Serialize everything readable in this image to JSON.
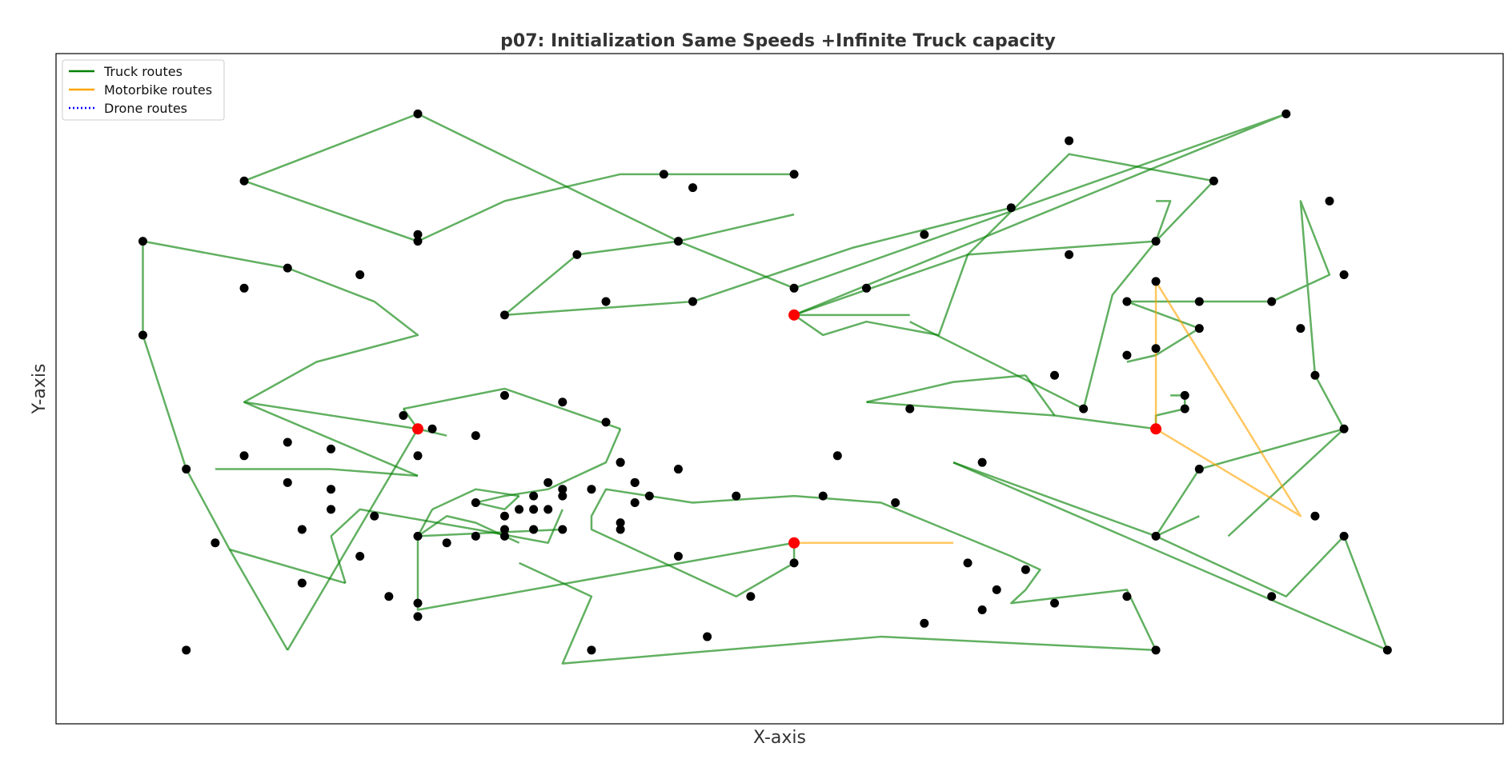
{
  "chart_data": {
    "type": "scatter",
    "title": "p07: Initialization Same Speeds +Infinite Truck capacity",
    "xlabel": "X-axis",
    "ylabel": "Y-axis",
    "xlim": [
      0,
      100
    ],
    "ylim": [
      0,
      100
    ],
    "grid": false,
    "legend_position": "top-left",
    "legend": [
      {
        "label": "Truck routes",
        "color": "#008000",
        "style": "solid"
      },
      {
        "label": "Motorbike routes",
        "color": "#ffa500",
        "style": "solid"
      },
      {
        "label": "Drone routes",
        "color": "#0000ff",
        "style": "dotted"
      }
    ],
    "colors": {
      "truck": "#008000",
      "motorbike": "#ffa500",
      "customer": "#000000",
      "depot": "#ff0000"
    },
    "depots": [
      [
        51,
        61
      ],
      [
        25,
        44
      ],
      [
        76,
        44
      ],
      [
        51,
        27
      ]
    ],
    "customers": [
      [
        25,
        91
      ],
      [
        13,
        81
      ],
      [
        25,
        72
      ],
      [
        42,
        82
      ],
      [
        51,
        82
      ],
      [
        44,
        80
      ],
      [
        43,
        72
      ],
      [
        36,
        70
      ],
      [
        31,
        61
      ],
      [
        38,
        63
      ],
      [
        44,
        63
      ],
      [
        51,
        65
      ],
      [
        56,
        65
      ],
      [
        66,
        77
      ],
      [
        60,
        73
      ],
      [
        70,
        87
      ],
      [
        85,
        91
      ],
      [
        80,
        81
      ],
      [
        76,
        72
      ],
      [
        70,
        70
      ],
      [
        74,
        63
      ],
      [
        79,
        63
      ],
      [
        84,
        63
      ],
      [
        88,
        78
      ],
      [
        89,
        67
      ],
      [
        87,
        52
      ],
      [
        89,
        44
      ],
      [
        76,
        66
      ],
      [
        79,
        59
      ],
      [
        76,
        56
      ],
      [
        74,
        55
      ],
      [
        78,
        49
      ],
      [
        78,
        47
      ],
      [
        71,
        47
      ],
      [
        69,
        52
      ],
      [
        59,
        47
      ],
      [
        64,
        39
      ],
      [
        79,
        38
      ],
      [
        76,
        28
      ],
      [
        86,
        59
      ],
      [
        87,
        31
      ],
      [
        84,
        19
      ],
      [
        89,
        28
      ],
      [
        92,
        11
      ],
      [
        76,
        11
      ],
      [
        74,
        19
      ],
      [
        69,
        18
      ],
      [
        64,
        17
      ],
      [
        65,
        20
      ],
      [
        67,
        23
      ],
      [
        63,
        24
      ],
      [
        58,
        33
      ],
      [
        54,
        40
      ],
      [
        47,
        34
      ],
      [
        53,
        34
      ],
      [
        51,
        24
      ],
      [
        48,
        19
      ],
      [
        43,
        25
      ],
      [
        39,
        30
      ],
      [
        40,
        36
      ],
      [
        39,
        39
      ],
      [
        40,
        33
      ],
      [
        39,
        29
      ],
      [
        37,
        11
      ],
      [
        45,
        13
      ],
      [
        60,
        15
      ],
      [
        34,
        32
      ],
      [
        33,
        29
      ],
      [
        31,
        31
      ],
      [
        29,
        33
      ],
      [
        31,
        28
      ],
      [
        32,
        32
      ],
      [
        25,
        16
      ],
      [
        27,
        27
      ],
      [
        35,
        29
      ],
      [
        35,
        34
      ],
      [
        37,
        35
      ],
      [
        39,
        39
      ],
      [
        38,
        45
      ],
      [
        35,
        48
      ],
      [
        31,
        49
      ],
      [
        29,
        43
      ],
      [
        26,
        44
      ],
      [
        25,
        40
      ],
      [
        24,
        46
      ],
      [
        19,
        41
      ],
      [
        16,
        36
      ],
      [
        13,
        40
      ],
      [
        19,
        35
      ],
      [
        19,
        32
      ],
      [
        17,
        29
      ],
      [
        17,
        21
      ],
      [
        22,
        31
      ],
      [
        21,
        25
      ],
      [
        9,
        11
      ],
      [
        25,
        28
      ],
      [
        23,
        19
      ],
      [
        31,
        29
      ],
      [
        25,
        18
      ],
      [
        33,
        34
      ],
      [
        35,
        35
      ],
      [
        33,
        32
      ],
      [
        29,
        28
      ],
      [
        43,
        38
      ],
      [
        41,
        34
      ],
      [
        40,
        36
      ],
      [
        34,
        36
      ],
      [
        11,
        27
      ],
      [
        6,
        58
      ],
      [
        6,
        72
      ],
      [
        9,
        38
      ],
      [
        16,
        68
      ],
      [
        25,
        73
      ],
      [
        21,
        67
      ],
      [
        16,
        42
      ],
      [
        13,
        65
      ]
    ],
    "truck_routes": [
      [
        [
          13,
          81
        ],
        [
          25,
          91
        ],
        [
          43,
          72
        ],
        [
          51,
          65
        ],
        [
          85,
          91
        ],
        [
          51,
          61
        ]
      ],
      [
        [
          25,
          72
        ],
        [
          13,
          81
        ]
      ],
      [
        [
          25,
          72
        ],
        [
          31,
          78
        ],
        [
          39,
          82
        ],
        [
          51,
          82
        ]
      ],
      [
        [
          31,
          61
        ],
        [
          36,
          70
        ],
        [
          43,
          72
        ],
        [
          51,
          76
        ]
      ],
      [
        [
          31,
          61
        ],
        [
          44,
          63
        ],
        [
          55,
          71
        ],
        [
          66,
          77
        ]
      ],
      [
        [
          51,
          61
        ],
        [
          53,
          58
        ],
        [
          56,
          60
        ],
        [
          61,
          58
        ],
        [
          63,
          70
        ],
        [
          70,
          85
        ],
        [
          80,
          81
        ],
        [
          76,
          72
        ]
      ],
      [
        [
          76,
          72
        ],
        [
          63,
          70
        ],
        [
          51,
          61
        ]
      ],
      [
        [
          6,
          58
        ],
        [
          6,
          72
        ],
        [
          16,
          68
        ],
        [
          22,
          63
        ],
        [
          25,
          58
        ],
        [
          18,
          54
        ],
        [
          13,
          48
        ],
        [
          25,
          44
        ]
      ],
      [
        [
          6,
          58
        ],
        [
          9,
          38
        ],
        [
          12,
          26
        ],
        [
          16,
          11
        ]
      ],
      [
        [
          16,
          11
        ],
        [
          25,
          44
        ]
      ],
      [
        [
          12,
          26
        ],
        [
          20,
          21
        ]
      ],
      [
        [
          19,
          28
        ],
        [
          20,
          21
        ]
      ],
      [
        [
          19,
          28
        ],
        [
          21,
          32
        ],
        [
          29,
          29
        ],
        [
          34,
          27
        ],
        [
          35,
          32
        ]
      ],
      [
        [
          11,
          38
        ],
        [
          19,
          38
        ],
        [
          25,
          37
        ]
      ],
      [
        [
          25,
          37
        ],
        [
          13,
          48
        ]
      ],
      [
        [
          25,
          44
        ],
        [
          27,
          43
        ]
      ],
      [
        [
          24,
          47
        ],
        [
          31,
          50
        ],
        [
          39,
          44
        ]
      ],
      [
        [
          24,
          47
        ],
        [
          25,
          44
        ]
      ],
      [
        [
          39,
          44
        ],
        [
          38,
          39
        ],
        [
          34,
          35
        ],
        [
          31,
          34
        ],
        [
          29,
          33
        ],
        [
          31,
          32
        ],
        [
          32,
          34
        ]
      ],
      [
        [
          32,
          34
        ],
        [
          29,
          35
        ],
        [
          26,
          32
        ]
      ],
      [
        [
          26,
          32
        ],
        [
          25,
          28
        ]
      ],
      [
        [
          25,
          28
        ],
        [
          35,
          29
        ]
      ],
      [
        [
          25,
          28
        ],
        [
          25,
          17
        ],
        [
          51,
          27
        ]
      ],
      [
        [
          51,
          27
        ],
        [
          51,
          24
        ],
        [
          47,
          19
        ],
        [
          42,
          24
        ],
        [
          37,
          29
        ],
        [
          37,
          31
        ],
        [
          38,
          35
        ],
        [
          44,
          33
        ],
        [
          51,
          34
        ],
        [
          57,
          33
        ],
        [
          66,
          25
        ],
        [
          68,
          23
        ],
        [
          67,
          20
        ],
        [
          66,
          18
        ],
        [
          70,
          19
        ],
        [
          74,
          20
        ],
        [
          76,
          11
        ],
        [
          57,
          13
        ],
        [
          35,
          9
        ],
        [
          37,
          19
        ],
        [
          32,
          24
        ]
      ],
      [
        [
          31,
          28
        ],
        [
          32,
          27
        ]
      ],
      [
        [
          31,
          28
        ],
        [
          29,
          30
        ],
        [
          27,
          31
        ],
        [
          25,
          28
        ]
      ],
      [
        [
          51,
          61
        ],
        [
          59,
          61
        ]
      ],
      [
        [
          59,
          60
        ],
        [
          71,
          47
        ],
        [
          73,
          64
        ],
        [
          76,
          72
        ],
        [
          77,
          78
        ],
        [
          76,
          78
        ]
      ],
      [
        [
          56,
          48
        ],
        [
          69,
          46
        ],
        [
          76,
          44
        ],
        [
          76,
          46
        ],
        [
          78,
          47
        ],
        [
          78,
          49
        ],
        [
          77,
          49
        ]
      ],
      [
        [
          69,
          46
        ],
        [
          67,
          52
        ]
      ],
      [
        [
          56,
          48
        ],
        [
          62,
          51
        ],
        [
          67,
          52
        ]
      ],
      [
        [
          62,
          39
        ],
        [
          76,
          28
        ],
        [
          79,
          31
        ]
      ],
      [
        [
          62,
          39
        ],
        [
          92,
          11
        ],
        [
          89,
          28
        ],
        [
          85,
          19
        ],
        [
          76,
          28
        ]
      ],
      [
        [
          81,
          28
        ],
        [
          89,
          44
        ],
        [
          79,
          38
        ]
      ],
      [
        [
          79,
          38
        ],
        [
          76,
          28
        ]
      ],
      [
        [
          74,
          63
        ],
        [
          79,
          63
        ],
        [
          84,
          63
        ],
        [
          88,
          67
        ],
        [
          86,
          78
        ],
        [
          87,
          52
        ],
        [
          89,
          44
        ]
      ],
      [
        [
          74,
          63
        ],
        [
          79,
          59
        ],
        [
          76,
          55
        ],
        [
          74,
          54
        ]
      ]
    ],
    "motorbike_routes": [
      [
        [
          51,
          27
        ],
        [
          62,
          27
        ]
      ],
      [
        [
          76,
          44
        ],
        [
          76,
          66
        ],
        [
          86,
          31
        ],
        [
          76,
          44
        ]
      ]
    ]
  }
}
